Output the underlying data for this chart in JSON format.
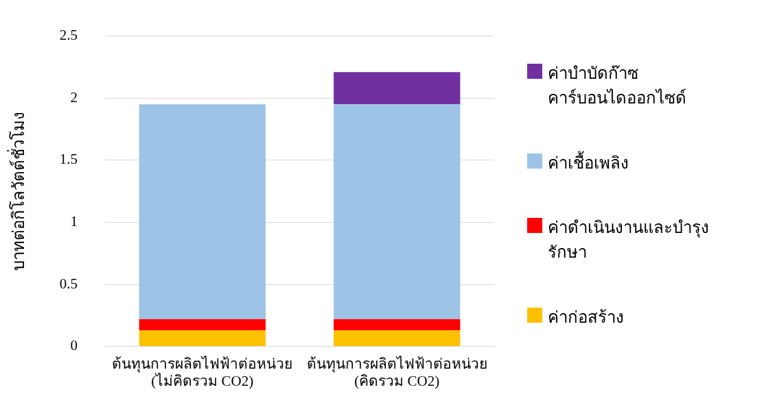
{
  "chart_data": {
    "type": "bar",
    "stacked": true,
    "ylabel": "บาทต่อกิโลวัตต์ชั่วโมง",
    "categories": [
      "ต้นทุนการผลิตไฟฟ้าต่อหน่วย\n(ไม่คิดรวม CO2)",
      "ต้นทุนการผลิตไฟฟ้าต่อหน่วย\n(คิดรวม CO2)"
    ],
    "series": [
      {
        "name": "ค่าก่อสร้าง",
        "color": "#ffc000",
        "values": [
          0.13,
          0.13
        ]
      },
      {
        "name": "ค่าดำเนินงานและบำรุงรักษา",
        "color": "#ff0000",
        "values": [
          0.09,
          0.09
        ]
      },
      {
        "name": "ค่าเชื้อเพลิง",
        "color": "#9dc3e6",
        "values": [
          1.73,
          1.73
        ]
      },
      {
        "name": "ค่าบำบัดก๊าซคาร์บอนไดออกไซด์",
        "color": "#7030a0",
        "values": [
          null,
          0.26
        ]
      }
    ],
    "ylim": [
      0,
      2.5
    ],
    "yticks": [
      0,
      0.5,
      1,
      1.5,
      2,
      2.5
    ],
    "grid": "y",
    "legend": "right"
  }
}
